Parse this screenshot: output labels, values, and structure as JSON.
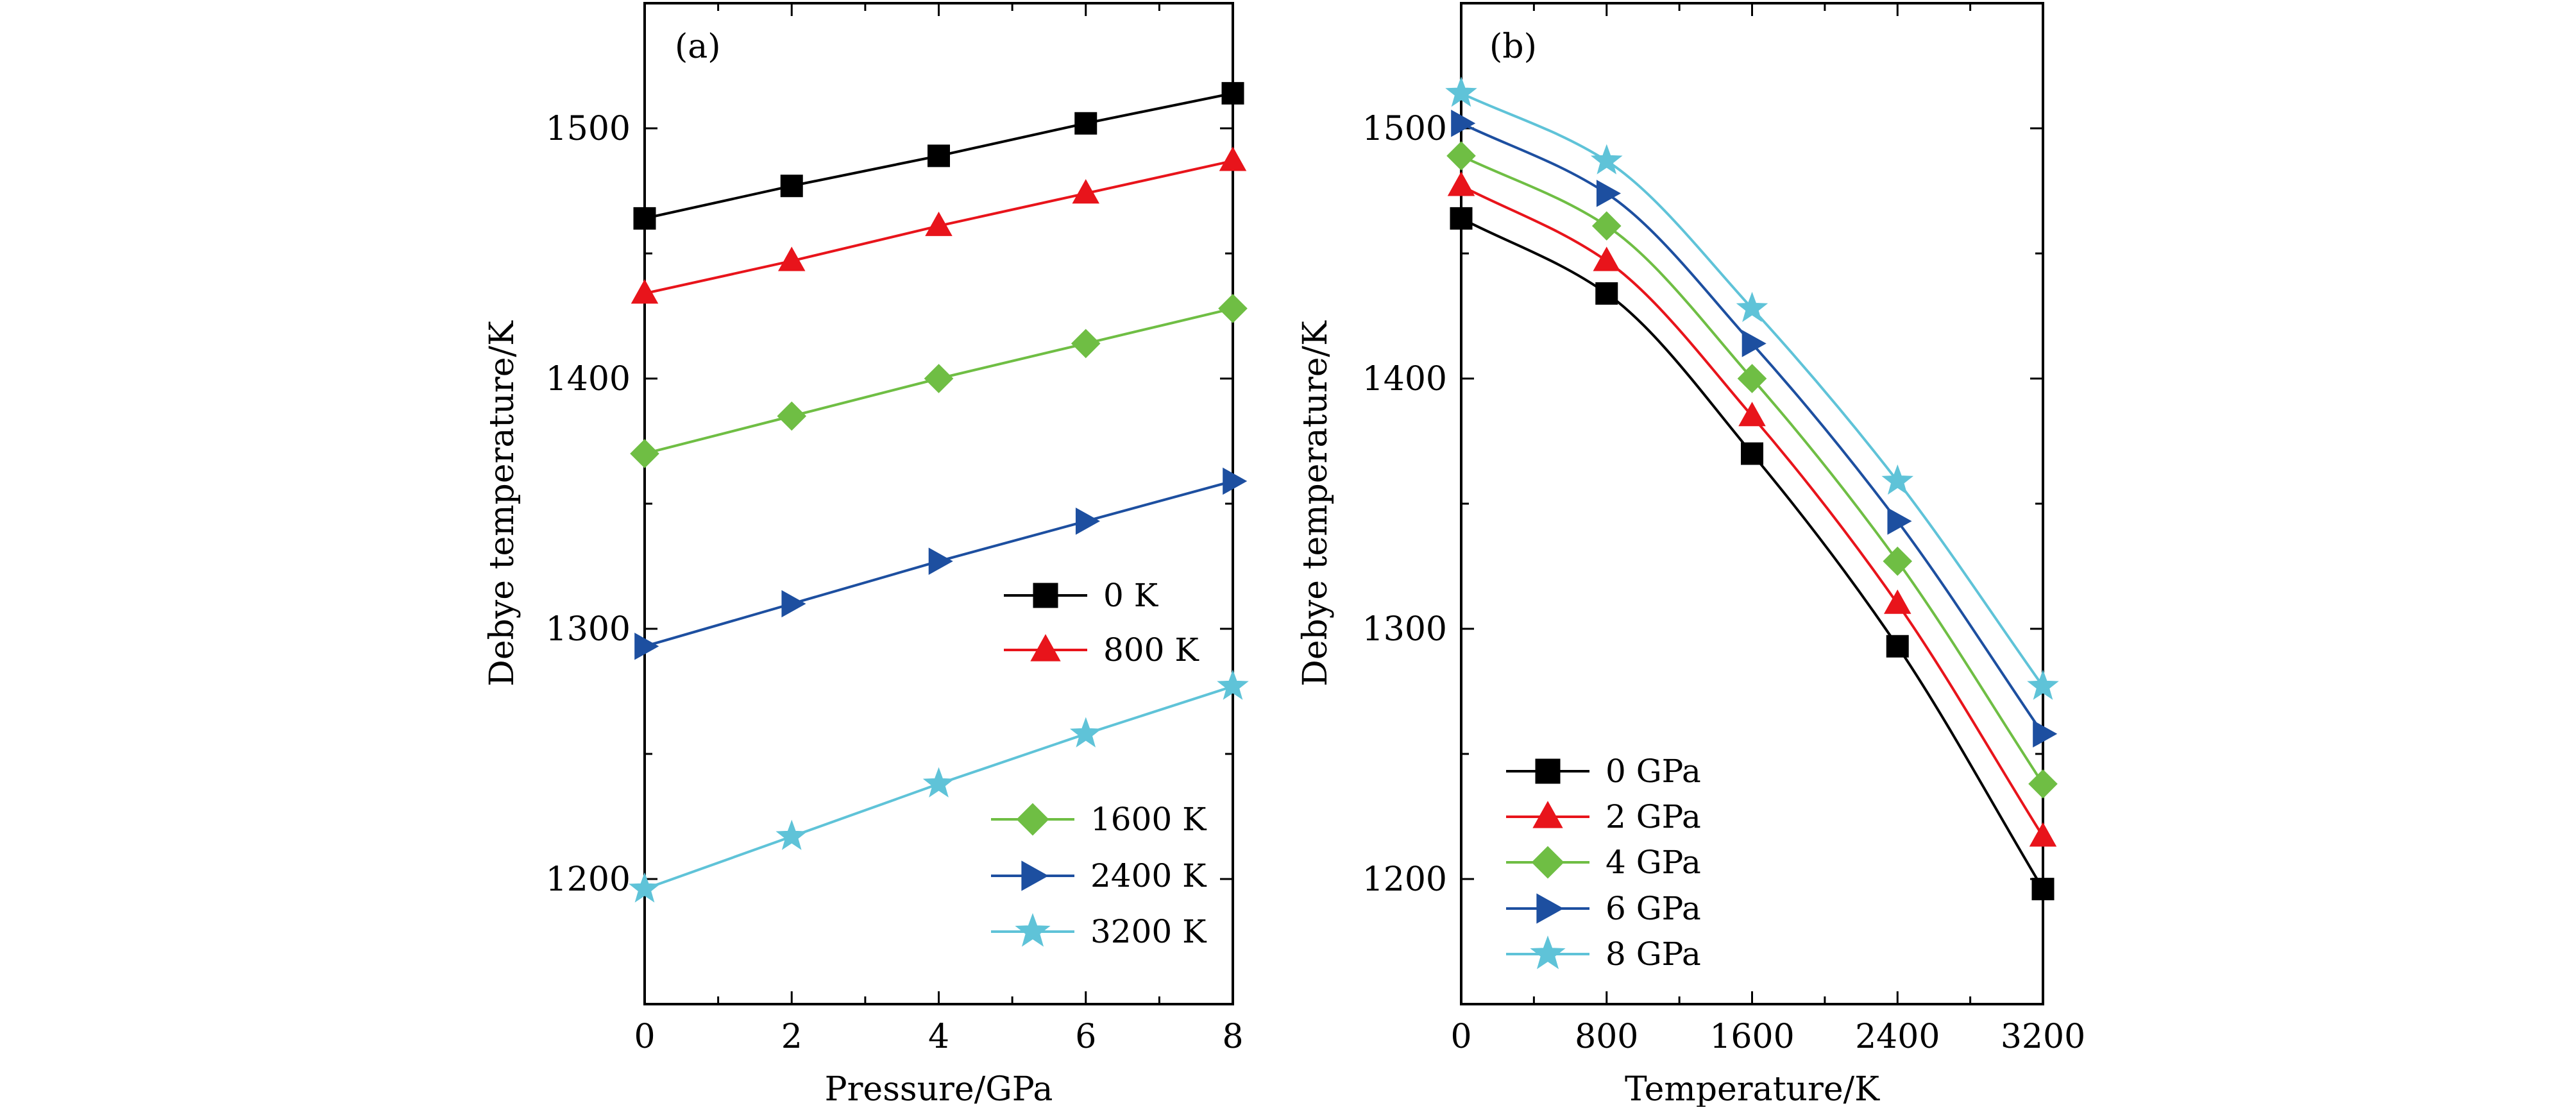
{
  "chart_data": [
    {
      "type": "line",
      "panel_label": "(a)",
      "xlabel": "Pressure/GPa",
      "ylabel": "Debye temperature/K",
      "xlim": [
        0,
        8
      ],
      "ylim": [
        1150,
        1550
      ],
      "xticks": [
        0,
        2,
        4,
        6,
        8
      ],
      "yticks": [
        1200,
        1300,
        1400,
        1500
      ],
      "legend": "right",
      "series": [
        {
          "name": "0 K",
          "color": "#000000",
          "marker": "square",
          "x": [
            0,
            2,
            4,
            6,
            8
          ],
          "values": [
            1464,
            1477,
            1489,
            1502,
            1514
          ]
        },
        {
          "name": "800 K",
          "color": "#e8141b",
          "marker": "triangle-up",
          "x": [
            0,
            2,
            4,
            6,
            8
          ],
          "values": [
            1434,
            1447,
            1461,
            1474,
            1487
          ]
        },
        {
          "name": "1600 K",
          "color": "#6fbe44",
          "marker": "diamond",
          "x": [
            0,
            2,
            4,
            6,
            8
          ],
          "values": [
            1370,
            1385,
            1400,
            1414,
            1428
          ]
        },
        {
          "name": "2400 K",
          "color": "#1d4fa0",
          "marker": "triangle-right",
          "x": [
            0,
            2,
            4,
            6,
            8
          ],
          "values": [
            1293,
            1310,
            1327,
            1343,
            1359
          ]
        },
        {
          "name": "3200 K",
          "color": "#5fc3d8",
          "marker": "star",
          "x": [
            0,
            2,
            4,
            6,
            8
          ],
          "values": [
            1196,
            1217,
            1238,
            1258,
            1277
          ]
        }
      ]
    },
    {
      "type": "line",
      "panel_label": "(b)",
      "xlabel": "Temperature/K",
      "ylabel": "Debye temperature/K",
      "xlim": [
        0,
        3200
      ],
      "ylim": [
        1150,
        1550
      ],
      "xticks": [
        0,
        800,
        1600,
        2400,
        3200
      ],
      "yticks": [
        1200,
        1300,
        1400,
        1500
      ],
      "legend": "bottom-left",
      "series": [
        {
          "name": "0 GPa",
          "color": "#000000",
          "marker": "square",
          "x": [
            0,
            800,
            1600,
            2400,
            3200
          ],
          "values": [
            1464,
            1434,
            1370,
            1293,
            1196
          ]
        },
        {
          "name": "2 GPa",
          "color": "#e8141b",
          "marker": "triangle-up",
          "x": [
            0,
            800,
            1600,
            2400,
            3200
          ],
          "values": [
            1477,
            1447,
            1385,
            1310,
            1217
          ]
        },
        {
          "name": "4 GPa",
          "color": "#6fbe44",
          "marker": "diamond",
          "x": [
            0,
            800,
            1600,
            2400,
            3200
          ],
          "values": [
            1489,
            1461,
            1400,
            1327,
            1238
          ]
        },
        {
          "name": "6 GPa",
          "color": "#1d4fa0",
          "marker": "triangle-right",
          "x": [
            0,
            800,
            1600,
            2400,
            3200
          ],
          "values": [
            1502,
            1474,
            1414,
            1343,
            1258
          ]
        },
        {
          "name": "8 GPa",
          "color": "#5fc3d8",
          "marker": "star",
          "x": [
            0,
            800,
            1600,
            2400,
            3200
          ],
          "values": [
            1514,
            1487,
            1428,
            1359,
            1277
          ]
        }
      ]
    }
  ]
}
